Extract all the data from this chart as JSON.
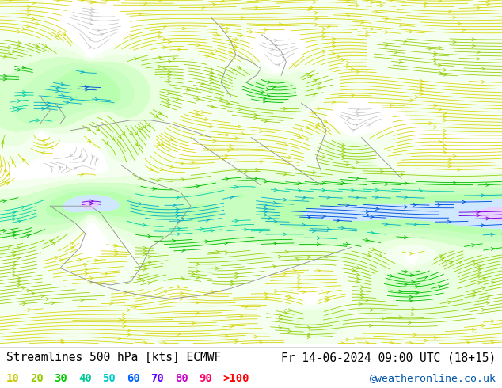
{
  "title_left": "Streamlines 500 hPa [kts] ECMWF",
  "title_right": "Fr 14-06-2024 09:00 UTC (18+15)",
  "legend_items": [
    {
      "label": "10",
      "color": "#c8c800"
    },
    {
      "label": "20",
      "color": "#96c800"
    },
    {
      "label": "30",
      "color": "#00c800"
    },
    {
      "label": "40",
      "color": "#00c896"
    },
    {
      "label": "50",
      "color": "#00c8c8"
    },
    {
      "label": "60",
      "color": "#0064ff"
    },
    {
      "label": "70",
      "color": "#6400ff"
    },
    {
      "label": "80",
      "color": "#c800c8"
    },
    {
      "label": "90",
      "color": "#ff0064"
    },
    {
      "label": ">100",
      "color": "#ff0000"
    }
  ],
  "watermark": "@weatheronline.co.uk",
  "watermark_color": "#0055aa",
  "bg_color": "#ffffff",
  "title_color": "#000000",
  "font_size_title": 10.5,
  "font_size_legend": 10,
  "font_size_watermark": 9.5,
  "fig_width": 6.34,
  "fig_height": 4.9,
  "dpi": 100,
  "stream_linewidth": 0.55,
  "stream_density": 3.5,
  "stream_arrowsize": 0.7,
  "seed": 0
}
